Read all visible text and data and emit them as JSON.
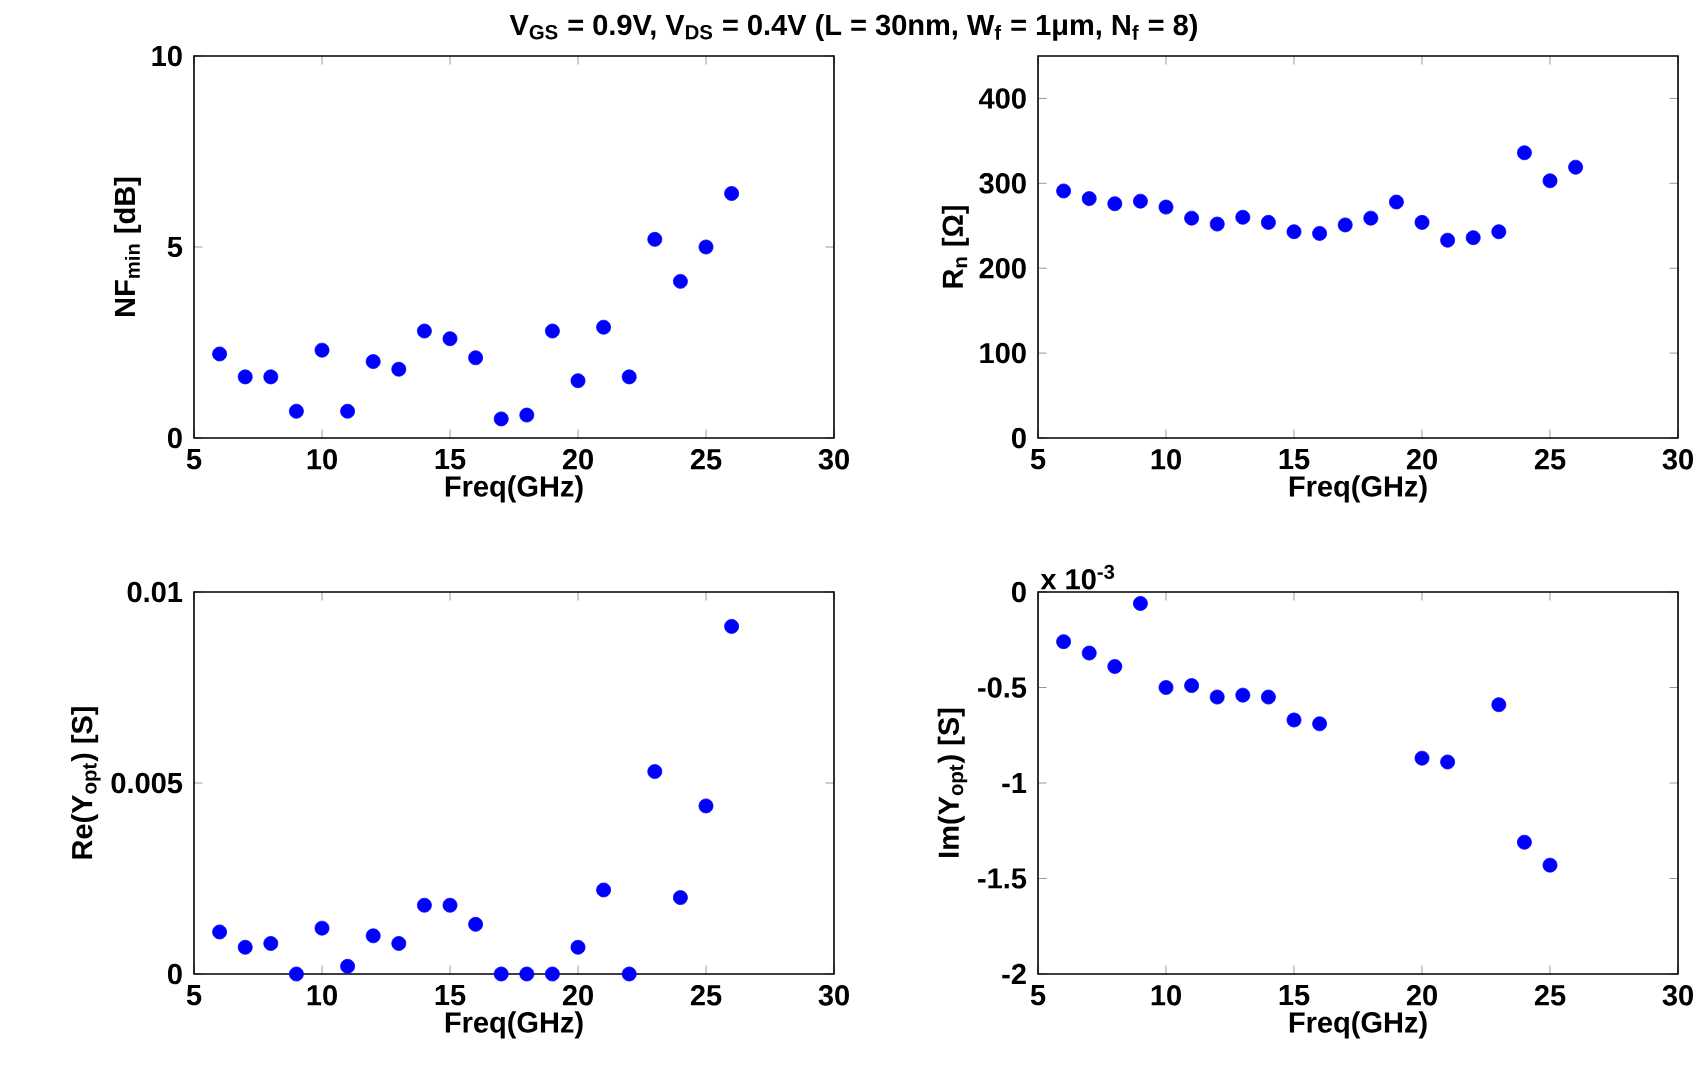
{
  "chart_data": [
    {
      "type": "scatter",
      "title": "V$_{GS}$ = 0.9V, V$_{DS}$ = 0.4V (L = 30nm, W$_{f}$ = 1μm, N$_{f}$ = 8)",
      "xlabel": "Freq(GHz)",
      "ylabel": "NF$_{min}$ [dB]",
      "x": [
        6,
        7,
        8,
        9,
        10,
        11,
        12,
        13,
        14,
        15,
        16,
        17,
        18,
        19,
        20,
        21,
        22,
        23,
        24,
        25,
        26
      ],
      "values": [
        2.2,
        1.6,
        1.6,
        0.7,
        2.3,
        0.7,
        2.0,
        1.8,
        2.8,
        2.6,
        2.1,
        0.5,
        0.6,
        2.8,
        1.5,
        2.9,
        1.6,
        5.2,
        4.1,
        5.0,
        6.4
      ],
      "color": "#0000ff",
      "marker": "circle",
      "xlim": [
        5,
        30
      ],
      "ylim": [
        0,
        10
      ],
      "xticks": [
        5,
        10,
        15,
        20,
        25,
        30
      ],
      "yticks": [
        0,
        5,
        10
      ]
    },
    {
      "type": "scatter",
      "xlabel": "Freq(GHz)",
      "ylabel": "R$_{n}$ [Ω]",
      "x": [
        6,
        7,
        8,
        9,
        10,
        11,
        12,
        13,
        14,
        15,
        16,
        17,
        18,
        19,
        20,
        21,
        22,
        23,
        24,
        25,
        26
      ],
      "values": [
        291,
        282,
        276,
        279,
        272,
        259,
        252,
        260,
        254,
        243,
        241,
        251,
        259,
        278,
        254,
        233,
        236,
        243,
        336,
        303,
        319
      ],
      "color": "#0000ff",
      "marker": "circle",
      "xlim": [
        5,
        30
      ],
      "ylim": [
        0,
        450
      ],
      "xticks": [
        5,
        10,
        15,
        20,
        25,
        30
      ],
      "yticks": [
        0,
        100,
        200,
        300,
        400
      ]
    },
    {
      "type": "scatter",
      "xlabel": "Freq(GHz)",
      "ylabel": "Re(Y$_{opt}$) [S]",
      "x": [
        6,
        7,
        8,
        9,
        10,
        11,
        12,
        13,
        14,
        15,
        16,
        17,
        18,
        19,
        20,
        21,
        22,
        23,
        24,
        25,
        26
      ],
      "values": [
        0.0011,
        0.0007,
        0.0008,
        0,
        0.0012,
        0.0002,
        0.001,
        0.0008,
        0.0018,
        0.0018,
        0.0013,
        0,
        0,
        0,
        0.0007,
        0.0022,
        0,
        0.0053,
        0.002,
        0.0044,
        0.0091
      ],
      "color": "#0000ff",
      "marker": "circle",
      "xlim": [
        5,
        30
      ],
      "ylim": [
        0,
        0.01
      ],
      "xticks": [
        5,
        10,
        15,
        20,
        25,
        30
      ],
      "yticks": [
        0,
        0.005,
        0.01
      ]
    },
    {
      "type": "scatter",
      "xlabel": "Freq(GHz)",
      "ylabel": "Im(Y$_{opt}$) [S]",
      "annotations": [
        "x 10$^{-3}$"
      ],
      "x": [
        6,
        7,
        8,
        9,
        10,
        11,
        12,
        13,
        14,
        15,
        16,
        20,
        21,
        23,
        24,
        25
      ],
      "values": [
        -0.26,
        -0.32,
        -0.39,
        -0.06,
        -0.5,
        -0.49,
        -0.55,
        -0.54,
        -0.55,
        -0.67,
        -0.69,
        -0.87,
        -0.89,
        -0.59,
        -1.31,
        -1.43
      ],
      "color": "#0000ff",
      "marker": "circle",
      "xlim": [
        5,
        30
      ],
      "ylim": [
        -2,
        0
      ],
      "xticks": [
        5,
        10,
        15,
        20,
        25,
        30
      ],
      "yticks": [
        -2,
        -1.5,
        -1,
        -0.5,
        0
      ]
    }
  ]
}
